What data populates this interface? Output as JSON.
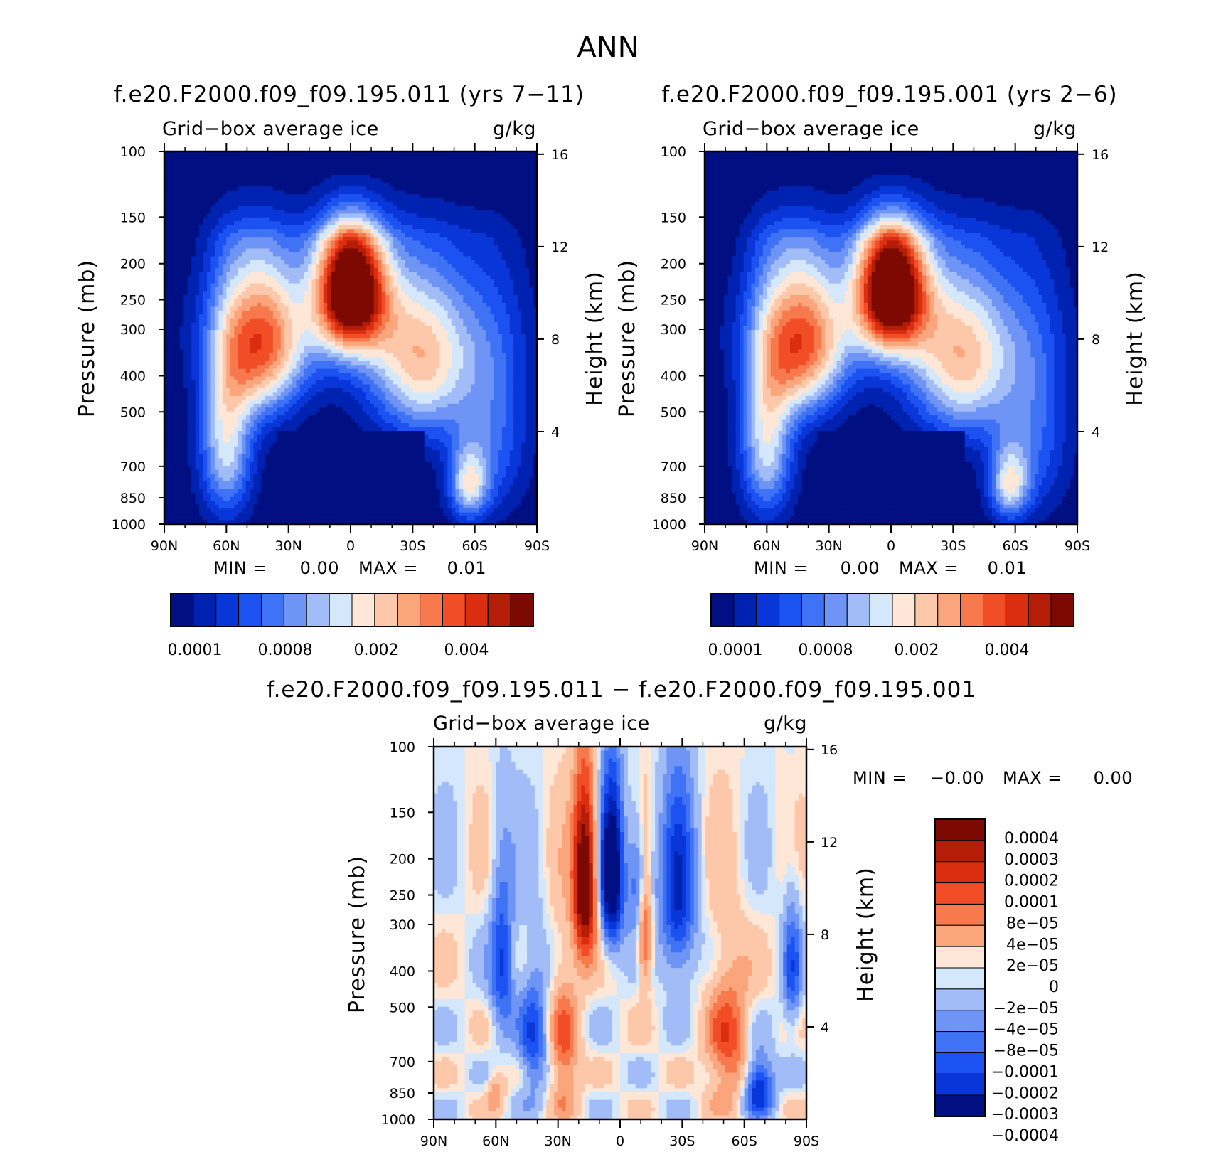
{
  "chart_data": {
    "title": "ANN",
    "panels": [
      {
        "type": "contour",
        "id": "model1",
        "title": "f.e20.F2000.f09_f09.195.011 (yrs 7−11)",
        "subtitle_left": "Grid−box average ice",
        "subtitle_right": "g/kg",
        "xlabel": "",
        "ylabel": "Pressure (mb)",
        "ylabel_right": "Height (km)",
        "x_ticks": [
          "90N",
          "60N",
          "30N",
          "0",
          "30S",
          "60S",
          "90S"
        ],
        "x_range": [
          90,
          -90
        ],
        "y_ticks": [
          100,
          150,
          200,
          250,
          300,
          400,
          500,
          700,
          850,
          1000
        ],
        "y_range": [
          100,
          1000
        ],
        "y_scale": "log",
        "height_ticks": [
          16,
          12,
          8,
          4
        ],
        "min_label": "MIN =",
        "min_value": "0.00",
        "max_label": "MAX =",
        "max_value": "0.01",
        "features": {
          "tropical_max_lat": 0,
          "tropical_max_pressure": 230,
          "nh_midlat_max_lat": 43,
          "nh_midlat_max_pressure": 330,
          "sh_lowlevel_max_lat": -57,
          "sh_lowlevel_max_pressure": 780
        },
        "colorbar": {
          "levels": 16,
          "tick_labels": [
            "0.0001",
            "0.0008",
            "0.002",
            "0.004"
          ]
        }
      },
      {
        "type": "contour",
        "id": "model2",
        "title": "f.e20.F2000.f09_f09.195.001 (yrs 2−6)",
        "subtitle_left": "Grid−box average ice",
        "subtitle_right": "g/kg",
        "xlabel": "",
        "ylabel": "Pressure (mb)",
        "ylabel_right": "Height (km)",
        "x_ticks": [
          "90N",
          "60N",
          "30N",
          "0",
          "30S",
          "60S",
          "90S"
        ],
        "x_range": [
          90,
          -90
        ],
        "y_ticks": [
          100,
          150,
          200,
          250,
          300,
          400,
          500,
          700,
          850,
          1000
        ],
        "y_range": [
          100,
          1000
        ],
        "y_scale": "log",
        "height_ticks": [
          16,
          12,
          8,
          4
        ],
        "min_label": "MIN =",
        "min_value": "0.00",
        "max_label": "MAX =",
        "max_value": "0.01",
        "features": {
          "tropical_max_lat": 0,
          "tropical_max_pressure": 230,
          "nh_midlat_max_lat": 43,
          "nh_midlat_max_pressure": 330,
          "sh_lowlevel_max_lat": -57,
          "sh_lowlevel_max_pressure": 780
        },
        "colorbar": {
          "levels": 16,
          "tick_labels": [
            "0.0001",
            "0.0008",
            "0.002",
            "0.004"
          ]
        }
      },
      {
        "type": "contour",
        "id": "difference",
        "title": "f.e20.F2000.f09_f09.195.011 − f.e20.F2000.f09_f09.195.001",
        "subtitle_left": "Grid−box average ice",
        "subtitle_right": "g/kg",
        "xlabel": "",
        "ylabel": "Pressure (mb)",
        "ylabel_right": "Height (km)",
        "x_ticks": [
          "90N",
          "60N",
          "30N",
          "0",
          "30S",
          "60S",
          "90S"
        ],
        "x_range": [
          90,
          -90
        ],
        "y_ticks": [
          100,
          150,
          200,
          250,
          300,
          400,
          500,
          700,
          850,
          1000
        ],
        "y_range": [
          100,
          1000
        ],
        "y_scale": "log",
        "height_ticks": [
          16,
          12,
          8,
          4
        ],
        "min_label": "MIN =",
        "min_value": "−0.00",
        "max_label": "MAX =",
        "max_value": "0.00",
        "features": {
          "positive_max_lat": 17,
          "positive_max_pressure": 230,
          "negative_max_lat": 4,
          "negative_max_pressure": 220
        },
        "colorbar": {
          "levels": 14,
          "tick_labels": [
            "0.0004",
            "0.0003",
            "0.0002",
            "0.0001",
            "8e−05",
            "4e−05",
            "2e−05",
            "0",
            "−2e−05",
            "−4e−05",
            "−8e−05",
            "−0.0001",
            "−0.0002",
            "−0.0003",
            "−0.0004"
          ]
        }
      }
    ],
    "palette": [
      "#000f82",
      "#0022b0",
      "#0936d8",
      "#1d52f2",
      "#3f72f4",
      "#6e94f5",
      "#a2bcf7",
      "#d4e7fb",
      "#fee7d6",
      "#fdc8aa",
      "#fba57d",
      "#f8794d",
      "#f14d26",
      "#db2d0f",
      "#b41d07",
      "#7c0a02"
    ]
  }
}
